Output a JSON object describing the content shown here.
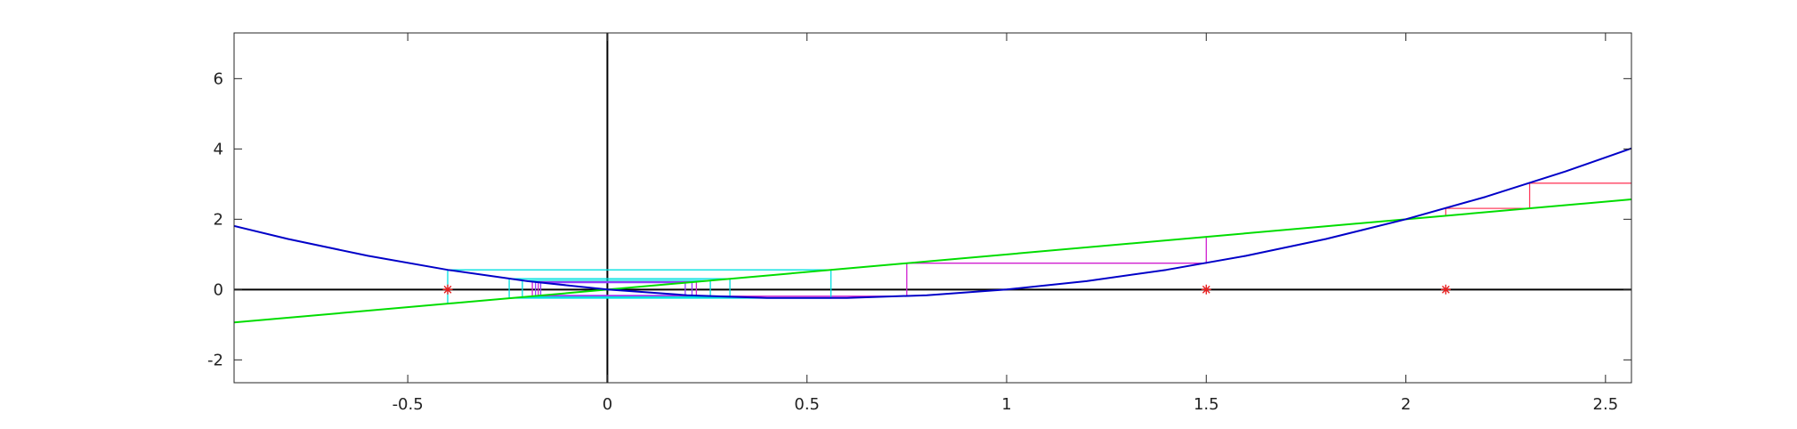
{
  "chart_data": {
    "type": "line",
    "title": "",
    "xlabel": "",
    "ylabel": "",
    "xlim": [
      -0.935,
      2.565
    ],
    "ylim": [
      -2.65,
      7.3
    ],
    "grid": false,
    "legend": "none",
    "xticks": [
      -0.5,
      0,
      0.5,
      1,
      1.5,
      2,
      2.5
    ],
    "xtick_labels": [
      "-0.5",
      "0",
      "0.5",
      "1",
      "1.5",
      "2",
      "2.5"
    ],
    "yticks": [
      -2,
      0,
      2,
      4,
      6
    ],
    "ytick_labels": [
      "-2",
      "0",
      "2",
      "4",
      "6"
    ],
    "colors": {
      "curve": "#0000c8",
      "line": "#00dd00",
      "axes": "#000000",
      "markers": "#e82020",
      "cobweb_1": "#ff4060",
      "cobweb_2": "#d020d0",
      "cobweb_3": "#00e0e0",
      "cobweb_4": "#9040ff"
    },
    "curve": {
      "x": [
        -0.935,
        -0.8,
        -0.6,
        -0.4,
        -0.2,
        0,
        0.2,
        0.4,
        0.6,
        0.8,
        1.0,
        1.2,
        1.4,
        1.6,
        1.8,
        2.0,
        2.2,
        2.4,
        2.565
      ],
      "y": [
        1.809,
        1.44,
        0.96,
        0.56,
        0.24,
        0.0,
        -0.16,
        -0.24,
        -0.24,
        -0.16,
        0.0,
        0.24,
        0.56,
        0.96,
        1.44,
        2.0,
        2.64,
        3.36,
        4.015
      ]
    },
    "line": {
      "x": [
        -0.935,
        2.565
      ],
      "y": [
        -0.935,
        2.565
      ]
    },
    "markers": {
      "x": [
        -0.4,
        1.5,
        2.1
      ],
      "y": [
        0,
        0,
        0
      ]
    },
    "cobwebs": [
      {
        "color": "cobweb_1",
        "points": [
          [
            2.1,
            2.1
          ],
          [
            2.1,
            2.31
          ],
          [
            2.31,
            2.31
          ],
          [
            2.31,
            3.026
          ],
          [
            2.565,
            3.026
          ]
        ]
      },
      {
        "color": "cobweb_2",
        "points": [
          [
            1.5,
            1.5
          ],
          [
            1.5,
            0.75
          ],
          [
            0.75,
            0.75
          ],
          [
            0.75,
            -0.188
          ],
          [
            -0.188,
            -0.188
          ],
          [
            -0.188,
            0.223
          ],
          [
            0.223,
            0.223
          ],
          [
            0.223,
            -0.173
          ],
          [
            -0.173,
            -0.173
          ],
          [
            -0.173,
            0.203
          ]
        ]
      },
      {
        "color": "cobweb_3",
        "points": [
          [
            -0.4,
            -0.4
          ],
          [
            -0.4,
            0.56
          ],
          [
            0.56,
            0.56
          ],
          [
            0.56,
            -0.246
          ],
          [
            -0.246,
            -0.246
          ],
          [
            -0.246,
            0.307
          ],
          [
            0.307,
            0.307
          ],
          [
            0.307,
            -0.213
          ],
          [
            -0.213,
            -0.213
          ],
          [
            -0.213,
            0.258
          ],
          [
            0.258,
            0.258
          ],
          [
            0.258,
            -0.191
          ]
        ]
      },
      {
        "color": "cobweb_4",
        "points": [
          [
            -0.18,
            -0.18
          ],
          [
            -0.18,
            0.212
          ],
          [
            0.212,
            0.212
          ],
          [
            0.212,
            -0.167
          ],
          [
            -0.167,
            -0.167
          ],
          [
            -0.167,
            0.195
          ],
          [
            0.195,
            0.195
          ],
          [
            0.195,
            -0.157
          ]
        ]
      }
    ]
  }
}
